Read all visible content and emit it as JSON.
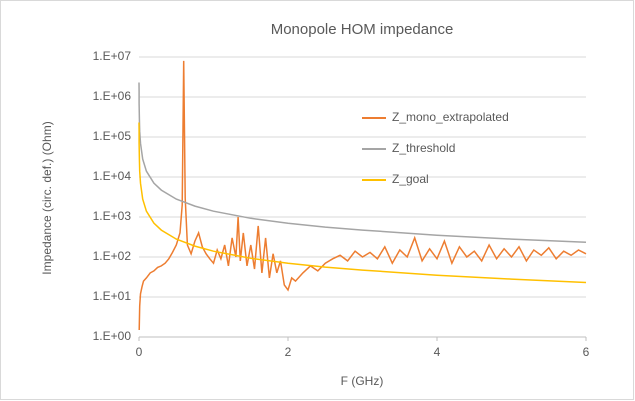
{
  "chart_data": {
    "type": "line",
    "title": "Monopole HOM impedance",
    "x_label": "F (GHz)",
    "y_label": "Impedance (circ. def.) (Ohm)",
    "log_y": true,
    "grid": true,
    "legend": "upper right",
    "xlim": [
      0,
      6
    ],
    "xticks": [
      0,
      2,
      4,
      6
    ],
    "ylim": [
      1,
      10000000
    ],
    "yticks": [
      {
        "value": 1,
        "label": "1.E+00"
      },
      {
        "value": 10,
        "label": "1.E+01"
      },
      {
        "value": 100,
        "label": "1.E+02"
      },
      {
        "value": 1000,
        "label": "1.E+03"
      },
      {
        "value": 10000,
        "label": "1.E+04"
      },
      {
        "value": 100000,
        "label": "1.E+05"
      },
      {
        "value": 1000000,
        "label": "1.E+06"
      },
      {
        "value": 10000000,
        "label": "1.E+07"
      }
    ],
    "series": [
      {
        "name": "Z_mono_extrapolated",
        "color": "#ed7d31",
        "x": [
          0.003,
          0.01,
          0.02,
          0.04,
          0.06,
          0.1,
          0.15,
          0.2,
          0.25,
          0.3,
          0.35,
          0.4,
          0.45,
          0.5,
          0.55,
          0.58,
          0.6,
          0.62,
          0.65,
          0.7,
          0.75,
          0.8,
          0.85,
          0.9,
          0.95,
          1.0,
          1.05,
          1.1,
          1.15,
          1.2,
          1.25,
          1.3,
          1.33,
          1.36,
          1.4,
          1.45,
          1.5,
          1.55,
          1.6,
          1.65,
          1.7,
          1.75,
          1.8,
          1.85,
          1.9,
          1.95,
          2.0,
          2.05,
          2.1,
          2.2,
          2.3,
          2.4,
          2.5,
          2.6,
          2.7,
          2.8,
          2.9,
          3.0,
          3.1,
          3.2,
          3.3,
          3.4,
          3.5,
          3.6,
          3.7,
          3.8,
          3.9,
          4.0,
          4.1,
          4.2,
          4.3,
          4.4,
          4.5,
          4.6,
          4.7,
          4.8,
          4.9,
          5.0,
          5.1,
          5.2,
          5.3,
          5.4,
          5.5,
          5.6,
          5.7,
          5.8,
          5.9,
          6.0
        ],
        "values": [
          1.5,
          6,
          12,
          18,
          25,
          30,
          40,
          45,
          55,
          60,
          70,
          90,
          130,
          200,
          400,
          2000,
          8000000,
          3000,
          200,
          120,
          250,
          400,
          180,
          120,
          90,
          70,
          150,
          90,
          200,
          60,
          300,
          100,
          1000,
          80,
          400,
          60,
          200,
          50,
          600,
          40,
          300,
          30,
          120,
          40,
          80,
          20,
          15,
          30,
          25,
          40,
          60,
          45,
          70,
          90,
          110,
          80,
          140,
          100,
          130,
          90,
          180,
          70,
          150,
          100,
          300,
          80,
          160,
          90,
          250,
          70,
          180,
          100,
          140,
          80,
          200,
          90,
          160,
          100,
          180,
          80,
          150,
          110,
          170,
          90,
          140,
          110,
          150,
          120
        ]
      },
      {
        "name": "Z_threshold",
        "color": "#a5a5a5",
        "x": [
          0.0006,
          0.001,
          0.002,
          0.005,
          0.01,
          0.02,
          0.05,
          0.1,
          0.2,
          0.3,
          0.5,
          0.75,
          1,
          1.5,
          2,
          2.5,
          3,
          4,
          5,
          6
        ],
        "values": [
          2300000,
          1400000,
          700000,
          280000,
          140000,
          70000,
          28000,
          14000,
          7000,
          4700,
          2800,
          1870,
          1400,
          930,
          700,
          560,
          470,
          350,
          280,
          233
        ]
      },
      {
        "name": "Z_goal",
        "color": "#ffc000",
        "x": [
          0.0006,
          0.001,
          0.002,
          0.005,
          0.01,
          0.02,
          0.05,
          0.1,
          0.2,
          0.3,
          0.5,
          0.75,
          1,
          1.5,
          2,
          2.5,
          3,
          4,
          5,
          6
        ],
        "values": [
          230000,
          140000,
          70000,
          28000,
          14000,
          7000,
          2800,
          1400,
          700,
          470,
          280,
          187,
          140,
          93,
          70,
          56,
          47,
          35,
          28,
          23
        ]
      }
    ]
  }
}
